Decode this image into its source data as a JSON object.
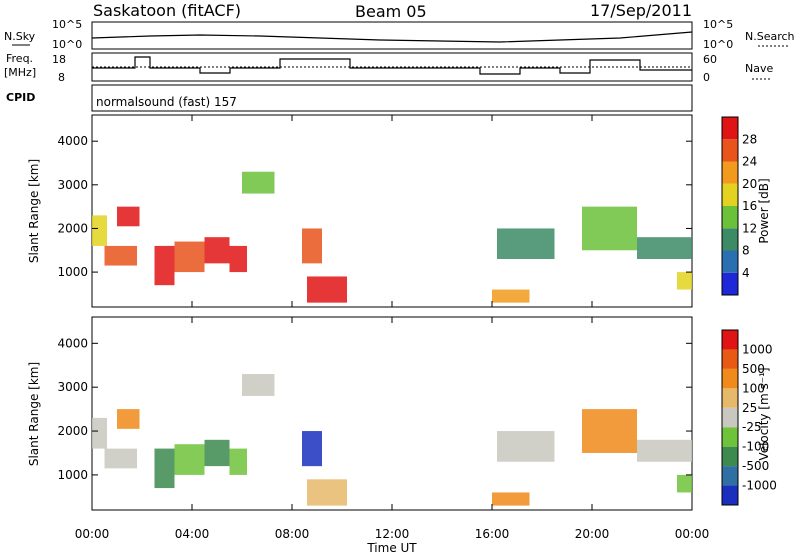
{
  "header": {
    "station": "Saskatoon (fitACF)",
    "beam": "Beam 05",
    "date": "17/Sep/2011"
  },
  "status_panels": {
    "nsky_label": "N.Sky",
    "nsky_ticks": [
      "10^5",
      "10^0"
    ],
    "nsearch_label": "N.Search",
    "nsearch_ticks": [
      "10^5",
      "10^0"
    ],
    "freq_label": "Freq.",
    "freq_unit": "[MHz]",
    "freq_ticks": [
      "18",
      "8"
    ],
    "nave_label": "Nave",
    "nave_ticks": [
      "60",
      "0"
    ],
    "cpid_label": "CPID",
    "cpid_value": "normalsound (fast) 157"
  },
  "chart_data": [
    {
      "type": "heatmap",
      "parameter": "Power",
      "ylabel": "Slant Range [km]",
      "xlabel": "",
      "ylim": [
        200,
        4600
      ],
      "yticks": [
        "1000",
        "2000",
        "3000",
        "4000"
      ],
      "colorbar_label": "Power [dB]",
      "colorbar_ticks": [
        "4",
        "8",
        "12",
        "16",
        "20",
        "24",
        "28"
      ],
      "colors": [
        "#1f28d8",
        "#2a6fb0",
        "#3c8a66",
        "#6cc13a",
        "#e3d21f",
        "#f29a1d",
        "#e8541c",
        "#e01414"
      ],
      "patches": [
        {
          "x": [
            0.0,
            0.6
          ],
          "r": [
            1600,
            2300
          ],
          "level": 4
        },
        {
          "x": [
            1.0,
            1.9
          ],
          "r": [
            2050,
            2500
          ],
          "level": 7
        },
        {
          "x": [
            0.5,
            1.8
          ],
          "r": [
            1150,
            1600
          ],
          "level": 6
        },
        {
          "x": [
            2.5,
            3.3
          ],
          "r": [
            700,
            1600
          ],
          "level": 7
        },
        {
          "x": [
            3.3,
            4.5
          ],
          "r": [
            1000,
            1700
          ],
          "level": 6
        },
        {
          "x": [
            4.5,
            5.5
          ],
          "r": [
            1200,
            1800
          ],
          "level": 7
        },
        {
          "x": [
            5.5,
            6.2
          ],
          "r": [
            1000,
            1600
          ],
          "level": 7
        },
        {
          "x": [
            6.0,
            7.3
          ],
          "r": [
            2800,
            3300
          ],
          "level": 3
        },
        {
          "x": [
            8.6,
            10.2
          ],
          "r": [
            300,
            900
          ],
          "level": 7
        },
        {
          "x": [
            8.4,
            9.2
          ],
          "r": [
            1200,
            2000
          ],
          "level": 6
        },
        {
          "x": [
            16.0,
            17.5
          ],
          "r": [
            300,
            600
          ],
          "level": 5
        },
        {
          "x": [
            16.2,
            18.5
          ],
          "r": [
            1300,
            2000
          ],
          "level": 2
        },
        {
          "x": [
            19.6,
            21.8
          ],
          "r": [
            1500,
            2500
          ],
          "level": 3
        },
        {
          "x": [
            21.8,
            24.0
          ],
          "r": [
            1300,
            1800
          ],
          "level": 2
        },
        {
          "x": [
            23.4,
            24.0
          ],
          "r": [
            600,
            1000
          ],
          "level": 4
        }
      ]
    },
    {
      "type": "heatmap",
      "parameter": "Velocity",
      "ylabel": "Slant Range [km]",
      "xlabel": "Time UT",
      "ylim": [
        200,
        4600
      ],
      "yticks": [
        "1000",
        "2000",
        "3000",
        "4000"
      ],
      "xticks": [
        "00:00",
        "04:00",
        "08:00",
        "12:00",
        "16:00",
        "20:00",
        "00:00"
      ],
      "colorbar_label": "Velocity [m s⁻¹]",
      "colorbar_ticks": [
        "1000",
        "500",
        "100",
        "25",
        "-25",
        "-100",
        "-500",
        "-1000"
      ],
      "colors": [
        "#1b2fbf",
        "#2f6fa3",
        "#3c8a4e",
        "#6fc33a",
        "#c8c8c0",
        "#e6b86a",
        "#f08a1a",
        "#e85a14",
        "#e01414"
      ],
      "patches": [
        {
          "x": [
            0.0,
            0.6
          ],
          "r": [
            1600,
            2300
          ],
          "level": 4
        },
        {
          "x": [
            1.0,
            1.9
          ],
          "r": [
            2050,
            2500
          ],
          "level": 6
        },
        {
          "x": [
            0.5,
            1.8
          ],
          "r": [
            1150,
            1600
          ],
          "level": 4
        },
        {
          "x": [
            2.5,
            3.3
          ],
          "r": [
            700,
            1600
          ],
          "level": 2
        },
        {
          "x": [
            3.3,
            4.5
          ],
          "r": [
            1000,
            1700
          ],
          "level": 3
        },
        {
          "x": [
            4.5,
            5.5
          ],
          "r": [
            1200,
            1800
          ],
          "level": 2
        },
        {
          "x": [
            5.5,
            6.2
          ],
          "r": [
            1000,
            1600
          ],
          "level": 3
        },
        {
          "x": [
            6.0,
            7.3
          ],
          "r": [
            2800,
            3300
          ],
          "level": 4
        },
        {
          "x": [
            8.6,
            10.2
          ],
          "r": [
            300,
            900
          ],
          "level": 5
        },
        {
          "x": [
            8.4,
            9.2
          ],
          "r": [
            1200,
            2000
          ],
          "level": 0
        },
        {
          "x": [
            16.0,
            17.5
          ],
          "r": [
            300,
            600
          ],
          "level": 6
        },
        {
          "x": [
            16.2,
            18.5
          ],
          "r": [
            1300,
            2000
          ],
          "level": 4
        },
        {
          "x": [
            19.6,
            21.8
          ],
          "r": [
            1500,
            2500
          ],
          "level": 6
        },
        {
          "x": [
            21.8,
            24.0
          ],
          "r": [
            1300,
            1800
          ],
          "level": 4
        },
        {
          "x": [
            23.4,
            24.0
          ],
          "r": [
            600,
            1000
          ],
          "level": 3
        }
      ]
    }
  ]
}
